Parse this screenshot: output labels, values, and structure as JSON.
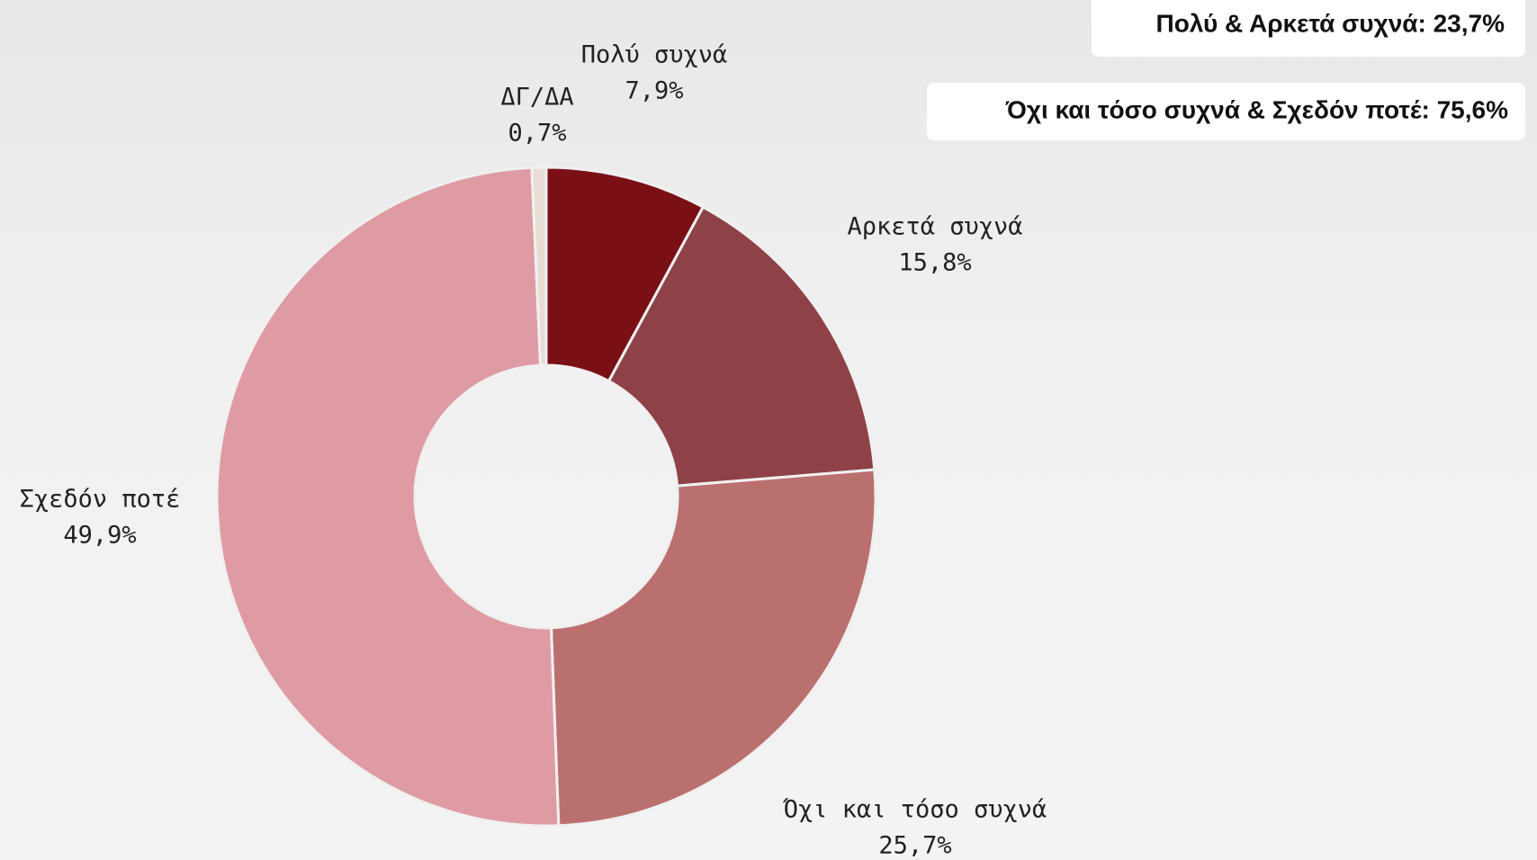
{
  "chart_data": {
    "type": "donut",
    "categories": [
      "Πολύ συχνά",
      "Αρκετά συχνά",
      "Όχι και τόσο συχνά",
      "Σχεδόν ποτέ",
      "ΔΓ/ΔΑ"
    ],
    "values": [
      7.9,
      15.8,
      25.7,
      49.9,
      0.7
    ],
    "value_labels": [
      "7,9%",
      "15,8%",
      "25,7%",
      "49,9%",
      "0,7%"
    ],
    "colors": [
      "#7a1016",
      "#8e4247",
      "#bb7070",
      "#de9ba4",
      "#e8ddd4"
    ],
    "annotations": [
      "Πολύ & Αρκετά συχνά: 23,7%",
      "Όχι και τόσο συχνά & Σχεδόν ποτέ: 75,6%"
    ]
  }
}
